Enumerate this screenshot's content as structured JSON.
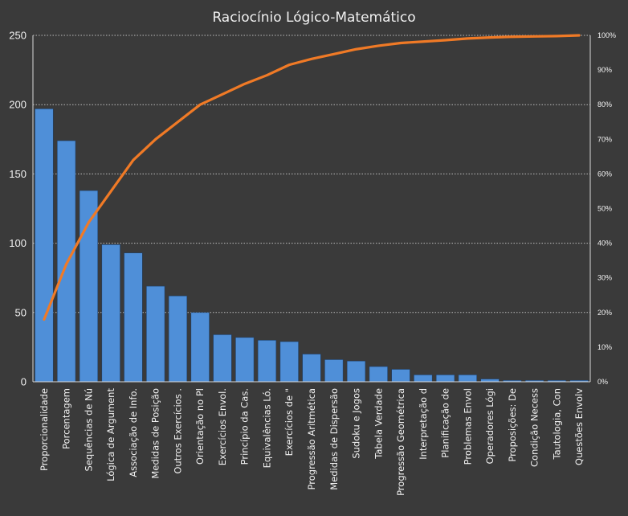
{
  "chart_data": {
    "type": "bar",
    "title": "Raciocínio Lógico-Matemático",
    "categories": [
      "Proporcionalidade",
      "Porcentagem",
      "Sequências de Nú",
      "Lógica de Argument",
      "Associação de Info.",
      "Medidas de Posição",
      "Outros Exercícios .",
      "Orientação no Pl",
      "Exercícios Envol.",
      "Princípio da Cas.",
      "Equivalências Ló.",
      "Exercícios de \"",
      "Progressão Aritmética",
      "Medidas de Dispersão",
      "Sudoku e Jogos",
      "Tabela Verdade",
      "Progressão Geométrica",
      "Interpretação d",
      "Planificação de",
      "Problemas Envol",
      "Operadores Lógi",
      "Proposições: De",
      "Condição Necess",
      "Tautologia, Con",
      "Questões Envolv"
    ],
    "series": [
      {
        "type": "bar",
        "axis": "left",
        "color": "#4f8fd8",
        "values": [
          197,
          174,
          138,
          99,
          93,
          69,
          62,
          50,
          34,
          32,
          30,
          29,
          20,
          16,
          15,
          11,
          9,
          5,
          5,
          5,
          2,
          1,
          1,
          1,
          1
        ]
      },
      {
        "type": "line",
        "axis": "right",
        "color": "#f07a26",
        "values": [
          18,
          34,
          46,
          55,
          64,
          70,
          75,
          80,
          83,
          86,
          88.5,
          91.5,
          93.2,
          94.6,
          96,
          97,
          97.8,
          98.2,
          98.6,
          99.1,
          99.4,
          99.6,
          99.7,
          99.8,
          100
        ]
      }
    ],
    "y_left": {
      "min": 0,
      "max": 250,
      "ticks": [
        "0",
        "50",
        "100",
        "150",
        "200",
        "250"
      ]
    },
    "y_right": {
      "min": 0,
      "max": 100,
      "ticks": [
        "0%",
        "10%",
        "20%",
        "30%",
        "40%",
        "50%",
        "60%",
        "70%",
        "80%",
        "90%",
        "100%"
      ]
    },
    "grid": true,
    "legend": "none"
  },
  "colors": {
    "background": "#3a3a3a",
    "bar_fill": "#4f8fd8",
    "line": "#f07a26",
    "axis": "#d8d8d8",
    "grid": "#bcbcbc"
  }
}
